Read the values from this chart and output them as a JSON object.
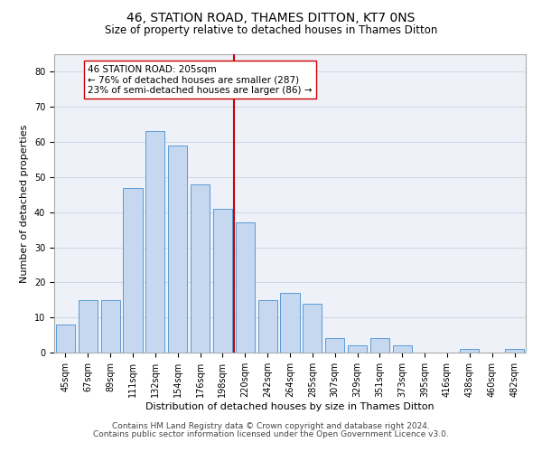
{
  "title": "46, STATION ROAD, THAMES DITTON, KT7 0NS",
  "subtitle": "Size of property relative to detached houses in Thames Ditton",
  "xlabel": "Distribution of detached houses by size in Thames Ditton",
  "ylabel": "Number of detached properties",
  "bar_labels": [
    "45sqm",
    "67sqm",
    "89sqm",
    "111sqm",
    "132sqm",
    "154sqm",
    "176sqm",
    "198sqm",
    "220sqm",
    "242sqm",
    "264sqm",
    "285sqm",
    "307sqm",
    "329sqm",
    "351sqm",
    "373sqm",
    "395sqm",
    "416sqm",
    "438sqm",
    "460sqm",
    "482sqm"
  ],
  "bar_values": [
    8,
    15,
    15,
    47,
    63,
    59,
    48,
    41,
    37,
    15,
    17,
    14,
    4,
    2,
    4,
    2,
    0,
    0,
    1,
    0,
    1
  ],
  "bar_color": "#c5d8f0",
  "bar_edge_color": "#5b9bd5",
  "vline_color": "#cc0000",
  "annotation_text": "46 STATION ROAD: 205sqm\n← 76% of detached houses are smaller (287)\n23% of semi-detached houses are larger (86) →",
  "ylim": [
    0,
    85
  ],
  "yticks": [
    0,
    10,
    20,
    30,
    40,
    50,
    60,
    70,
    80
  ],
  "grid_color": "#d0d8e8",
  "background_color": "#eef2f8",
  "footer_line1": "Contains HM Land Registry data © Crown copyright and database right 2024.",
  "footer_line2": "Contains public sector information licensed under the Open Government Licence v3.0.",
  "title_fontsize": 10,
  "subtitle_fontsize": 8.5,
  "xlabel_fontsize": 8,
  "ylabel_fontsize": 8,
  "tick_fontsize": 7,
  "annotation_fontsize": 7.5,
  "footer_fontsize": 6.5
}
